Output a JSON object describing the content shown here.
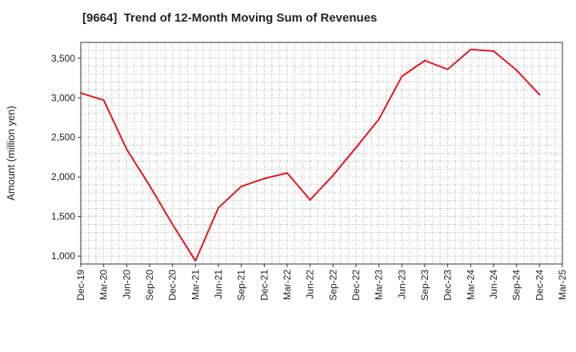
{
  "chart_data": {
    "type": "line",
    "title": "[9664]  Trend of 12-Month Moving Sum of Revenues",
    "ylabel": "Amount (million yen)",
    "xlabel": "",
    "x_ticks": [
      "Dec-19",
      "Mar-20",
      "Jun-20",
      "Sep-20",
      "Dec-20",
      "Mar-21",
      "Jun-21",
      "Sep-21",
      "Dec-21",
      "Mar-22",
      "Jun-22",
      "Sep-22",
      "Dec-22",
      "Mar-23",
      "Jun-23",
      "Sep-23",
      "Dec-23",
      "Mar-24",
      "Jun-24",
      "Sep-24",
      "Dec-24",
      "Mar-25"
    ],
    "y_ticks": [
      1000,
      1500,
      2000,
      2500,
      3000,
      3500
    ],
    "ylim": [
      900,
      3700
    ],
    "grid": true,
    "series": [
      {
        "color": "#e8141b",
        "x": [
          "Dec-19",
          "Mar-20",
          "Jun-20",
          "Sep-20",
          "Dec-20",
          "Mar-21",
          "Jun-21",
          "Sep-21",
          "Dec-21",
          "Mar-22",
          "Jun-22",
          "Sep-22",
          "Dec-22",
          "Mar-23",
          "Jun-23",
          "Sep-23",
          "Dec-23",
          "Mar-24",
          "Jun-24",
          "Sep-24",
          "Dec-24"
        ],
        "values": [
          3060,
          2970,
          2350,
          1890,
          1400,
          940,
          1610,
          1880,
          1980,
          2050,
          1710,
          2020,
          2370,
          2730,
          3270,
          3470,
          3360,
          3610,
          3590,
          3350,
          3040
        ]
      }
    ]
  }
}
